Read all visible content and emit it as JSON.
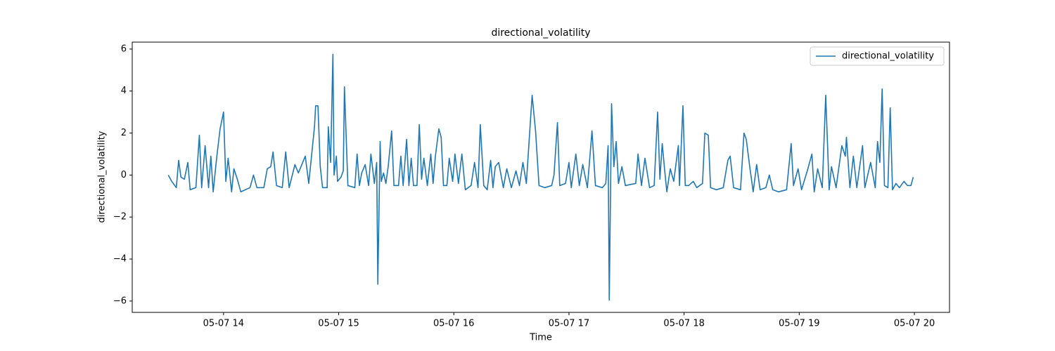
{
  "chart_data": {
    "type": "line",
    "title": "directional_volatility",
    "xlabel": "Time",
    "ylabel": "directional_volatility",
    "x": [
      13.52,
      13.55,
      13.59,
      13.61,
      13.63,
      13.66,
      13.69,
      13.71,
      13.76,
      13.79,
      13.81,
      13.84,
      13.87,
      13.89,
      13.91,
      13.94,
      13.97,
      14.0,
      14.02,
      14.04,
      14.07,
      14.09,
      14.12,
      14.15,
      14.23,
      14.26,
      14.29,
      14.35,
      14.38,
      14.41,
      14.43,
      14.46,
      14.51,
      14.54,
      14.57,
      14.62,
      14.65,
      14.71,
      14.74,
      14.79,
      14.8,
      14.82,
      14.84,
      14.86,
      14.9,
      14.91,
      14.93,
      14.95,
      14.96,
      14.98,
      14.99,
      15.02,
      15.04,
      15.05,
      15.08,
      15.14,
      15.16,
      15.18,
      15.2,
      15.23,
      15.26,
      15.28,
      15.31,
      15.33,
      15.34,
      15.36,
      15.37,
      15.39,
      15.41,
      15.43,
      15.46,
      15.48,
      15.52,
      15.54,
      15.56,
      15.59,
      15.61,
      15.63,
      15.65,
      15.68,
      15.7,
      15.72,
      15.74,
      15.77,
      15.8,
      15.82,
      15.84,
      15.87,
      15.89,
      15.91,
      15.94,
      15.96,
      15.99,
      16.01,
      16.04,
      16.07,
      16.1,
      16.15,
      16.18,
      16.21,
      16.23,
      16.26,
      16.29,
      16.32,
      16.34,
      16.36,
      16.39,
      16.43,
      16.46,
      16.5,
      16.54,
      16.57,
      16.6,
      16.63,
      16.68,
      16.71,
      16.74,
      16.79,
      16.85,
      16.87,
      16.9,
      16.92,
      16.97,
      17.0,
      17.02,
      17.06,
      17.09,
      17.12,
      17.16,
      17.2,
      17.23,
      17.29,
      17.32,
      17.34,
      17.35,
      17.37,
      17.39,
      17.41,
      17.43,
      17.46,
      17.49,
      17.58,
      17.6,
      17.63,
      17.66,
      17.7,
      17.74,
      17.77,
      17.79,
      17.81,
      17.83,
      17.85,
      17.88,
      17.91,
      17.95,
      17.96,
      17.99,
      18.01,
      18.04,
      18.08,
      18.11,
      18.16,
      18.18,
      18.21,
      18.23,
      18.28,
      18.34,
      18.38,
      18.4,
      18.43,
      18.49,
      18.52,
      18.54,
      18.57,
      18.6,
      18.63,
      18.66,
      18.71,
      18.74,
      18.77,
      18.82,
      18.89,
      18.93,
      18.95,
      18.99,
      19.02,
      19.07,
      19.11,
      19.13,
      19.16,
      19.2,
      19.23,
      19.26,
      19.28,
      19.32,
      19.37,
      19.4,
      19.41,
      19.44,
      19.47,
      19.5,
      19.55,
      19.57,
      19.62,
      19.66,
      19.68,
      19.7,
      19.72,
      19.74,
      19.77,
      19.79,
      19.81,
      19.84,
      19.87,
      19.91,
      19.94,
      19.97,
      19.99
    ],
    "series": [
      {
        "name": "directional_volatility",
        "color": "#1f77b4",
        "values": [
          0,
          -0.3,
          -0.6,
          0.7,
          -0.1,
          -0.2,
          0.6,
          -0.7,
          -0.6,
          1.9,
          -0.6,
          1.4,
          -0.6,
          0.9,
          -0.8,
          0.8,
          2.2,
          3.0,
          -0.3,
          0.8,
          -0.8,
          0.3,
          -0.2,
          -0.8,
          -0.6,
          0,
          -0.6,
          -0.6,
          0.3,
          0.4,
          1.1,
          -0.5,
          -0.6,
          1.1,
          -0.6,
          0.5,
          0.1,
          0.9,
          -0.4,
          2.3,
          3.3,
          3.3,
          0.4,
          -0.6,
          -0.6,
          2.3,
          0.6,
          5.75,
          0,
          0.9,
          -0.3,
          -0.1,
          0.2,
          4.2,
          -0.5,
          -0.6,
          1.0,
          -0.5,
          0.1,
          0.5,
          -0.5,
          1.0,
          -0.4,
          0.6,
          -5.2,
          1.6,
          -0.3,
          0.1,
          -0.4,
          0.4,
          2.1,
          -0.5,
          -0.5,
          0.9,
          -0.5,
          1.7,
          -0.5,
          0.8,
          -0.5,
          -0.5,
          2.4,
          -0.2,
          0.8,
          -0.5,
          1.0,
          -0.4,
          0.9,
          2.2,
          1.8,
          -0.5,
          -0.5,
          0.8,
          -0.3,
          1.0,
          -0.4,
          1.0,
          -0.7,
          -0.5,
          0.6,
          -0.6,
          2.4,
          -0.5,
          -0.7,
          0.7,
          -0.6,
          0.4,
          0.6,
          -0.6,
          0.3,
          -0.6,
          0.2,
          -0.5,
          0.6,
          -0.4,
          3.8,
          2.1,
          -0.5,
          -0.6,
          -0.5,
          0,
          2.5,
          -0.5,
          -0.4,
          0.6,
          -0.6,
          1.0,
          -0.5,
          0.5,
          -0.6,
          2.1,
          -0.5,
          -0.6,
          -0.4,
          1.4,
          -5.95,
          3.4,
          0.4,
          1.6,
          -0.4,
          0.4,
          -0.5,
          -0.4,
          1.0,
          -0.5,
          0.8,
          -0.6,
          -0.5,
          3.0,
          -0.2,
          1.5,
          0.3,
          -0.8,
          0.3,
          -0.3,
          1.4,
          -0.5,
          3.3,
          -0.5,
          -0.5,
          -0.3,
          -0.6,
          -0.4,
          2.0,
          1.9,
          -0.6,
          -0.7,
          -0.6,
          0.7,
          0.9,
          -0.6,
          -0.7,
          2.0,
          1.7,
          0.4,
          -0.8,
          0.5,
          -0.7,
          -0.6,
          0,
          -0.7,
          -0.8,
          -0.7,
          1.5,
          -0.5,
          0.3,
          -0.7,
          0.2,
          1.0,
          -0.8,
          0.3,
          -0.6,
          3.8,
          -0.7,
          0.4,
          -0.6,
          1.4,
          0.9,
          1.8,
          -0.6,
          0.9,
          -0.6,
          1.4,
          -0.6,
          0.6,
          -0.6,
          1.6,
          0.6,
          4.1,
          -0.5,
          -0.6,
          3.2,
          -0.7,
          -0.4,
          -0.6,
          -0.3,
          -0.5,
          -0.5,
          -0.1
        ]
      }
    ],
    "xlim": [
      13.207,
      20.305
    ],
    "xticks": [
      {
        "value": 14,
        "label": "05-07 14"
      },
      {
        "value": 15,
        "label": "05-07 15"
      },
      {
        "value": 16,
        "label": "05-07 16"
      },
      {
        "value": 17,
        "label": "05-07 17"
      },
      {
        "value": 18,
        "label": "05-07 18"
      },
      {
        "value": 19,
        "label": "05-07 19"
      },
      {
        "value": 20,
        "label": "05-07 20"
      }
    ],
    "ylim": [
      -6.54,
      6.33
    ],
    "yticks": [
      {
        "value": -6,
        "label": "−6"
      },
      {
        "value": -4,
        "label": "−4"
      },
      {
        "value": -2,
        "label": "−2"
      },
      0,
      2,
      4,
      6
    ],
    "grid": false,
    "legend": "upper right"
  }
}
